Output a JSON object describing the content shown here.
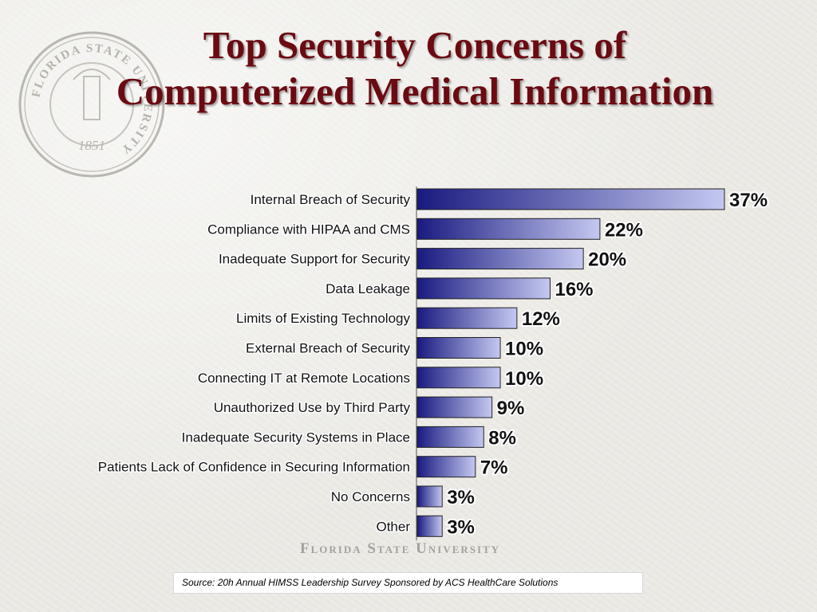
{
  "slide": {
    "title_line1": "Top Security Concerns of",
    "title_line2": "Computerized Medical Information",
    "watermark": "Florida State University",
    "source": "Source: 20h Annual HIMSS Leadership Survey Sponsored by ACS HealthCare Solutions"
  },
  "seal": {
    "ring_text": "FLORIDA STATE UNIVERSITY",
    "year": "1851"
  },
  "colors": {
    "title": "#6b0a12",
    "bar_dark": "#1a1a80",
    "bar_light": "#c4c8f0",
    "label_outline": "#ffffff"
  },
  "chart_data": {
    "type": "bar",
    "orientation": "horizontal",
    "categories": [
      "Internal Breach of Security",
      "Compliance with HIPAA and CMS",
      "Inadequate Support for Security",
      "Data Leakage",
      "Limits of Existing Technology",
      "External Breach of Security",
      "Connecting IT at Remote Locations",
      "Unauthorized Use by Third Party",
      "Inadequate Security Systems in Place",
      "Patients Lack of Confidence in Securing Information",
      "No Concerns",
      "Other"
    ],
    "values": [
      37,
      22,
      20,
      16,
      12,
      10,
      10,
      9,
      8,
      7,
      3,
      3
    ],
    "data_labels": [
      "37%",
      "22%",
      "20%",
      "16%",
      "12%",
      "10%",
      "10%",
      "9%",
      "8%",
      "7%",
      "3%",
      "3%"
    ],
    "title": "",
    "xlabel": "",
    "ylabel": "",
    "xlim": [
      0,
      37
    ],
    "grid": false,
    "legend": "none"
  }
}
